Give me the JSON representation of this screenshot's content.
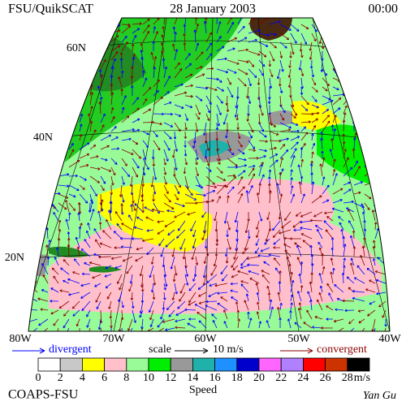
{
  "header": {
    "left": "FSU/QuikSCAT",
    "center": "28 January 2003",
    "right": "00:00"
  },
  "map": {
    "lat_labels": [
      "60N",
      "40N",
      "20N"
    ],
    "lon_labels": [
      "80W",
      "70W",
      "60W",
      "50W",
      "40W"
    ]
  },
  "legend": {
    "divergent": "divergent",
    "scale": "scale",
    "scale_value": "10 m/s",
    "convergent": "convergent"
  },
  "colorbar": {
    "title": "Speed",
    "unit": "m/s",
    "ticks": [
      0,
      2,
      4,
      6,
      8,
      10,
      12,
      14,
      16,
      18,
      20,
      22,
      24,
      26,
      28
    ],
    "colors": [
      "#ffffff",
      "#c8c8c8",
      "#ffff00",
      "#ffc0cb",
      "#98fb98",
      "#00ee00",
      "#999999",
      "#20b2aa",
      "#1e90ff",
      "#0000cd",
      "#ff66ff",
      "#b080ff",
      "#ff0000",
      "#cc3300",
      "#000000"
    ]
  },
  "footer": {
    "left": "COAPS-FSU",
    "right": "Yan Gu"
  }
}
